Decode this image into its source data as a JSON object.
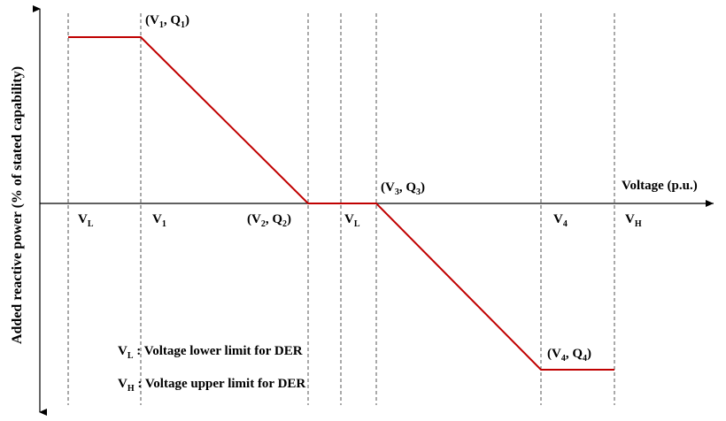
{
  "chart_data": {
    "type": "line",
    "ylabel": "Added reactive power (% of stated capability)",
    "xlabel": "Voltage (p.u.)",
    "vlines": [
      {
        "base": "V",
        "sub": "L"
      },
      {
        "base": "V",
        "sub": "1"
      },
      {
        "base": "",
        "sub": ""
      },
      {
        "base": "V",
        "sub": "L"
      },
      {
        "base": "",
        "sub": ""
      },
      {
        "base": "V",
        "sub": "4"
      },
      {
        "base": "V",
        "sub": "H"
      }
    ],
    "points": [
      {
        "name": "(V1, Q1)",
        "parts": [
          [
            "(V",
            "1"
          ],
          [
            ", Q",
            "1"
          ],
          [
            ")",
            ""
          ]
        ]
      },
      {
        "name": "(V2, Q2)",
        "parts": [
          [
            "(V",
            "2"
          ],
          [
            ", Q",
            "2"
          ],
          [
            ")",
            ""
          ]
        ]
      },
      {
        "name": "(V3, Q3)",
        "parts": [
          [
            "(V",
            "3"
          ],
          [
            ", Q",
            "3"
          ],
          [
            ")",
            ""
          ]
        ]
      },
      {
        "name": "(V4, Q4)",
        "parts": [
          [
            "(V",
            "4"
          ],
          [
            ", Q",
            "4"
          ],
          [
            ")",
            ""
          ]
        ]
      }
    ],
    "curve_color": "#c00000",
    "legend": [
      {
        "base": "V",
        "sub": "L",
        "text": " : Voltage lower limit for DER"
      },
      {
        "base": "V",
        "sub": "H",
        "text": " : Voltage upper limit for DER"
      }
    ]
  }
}
